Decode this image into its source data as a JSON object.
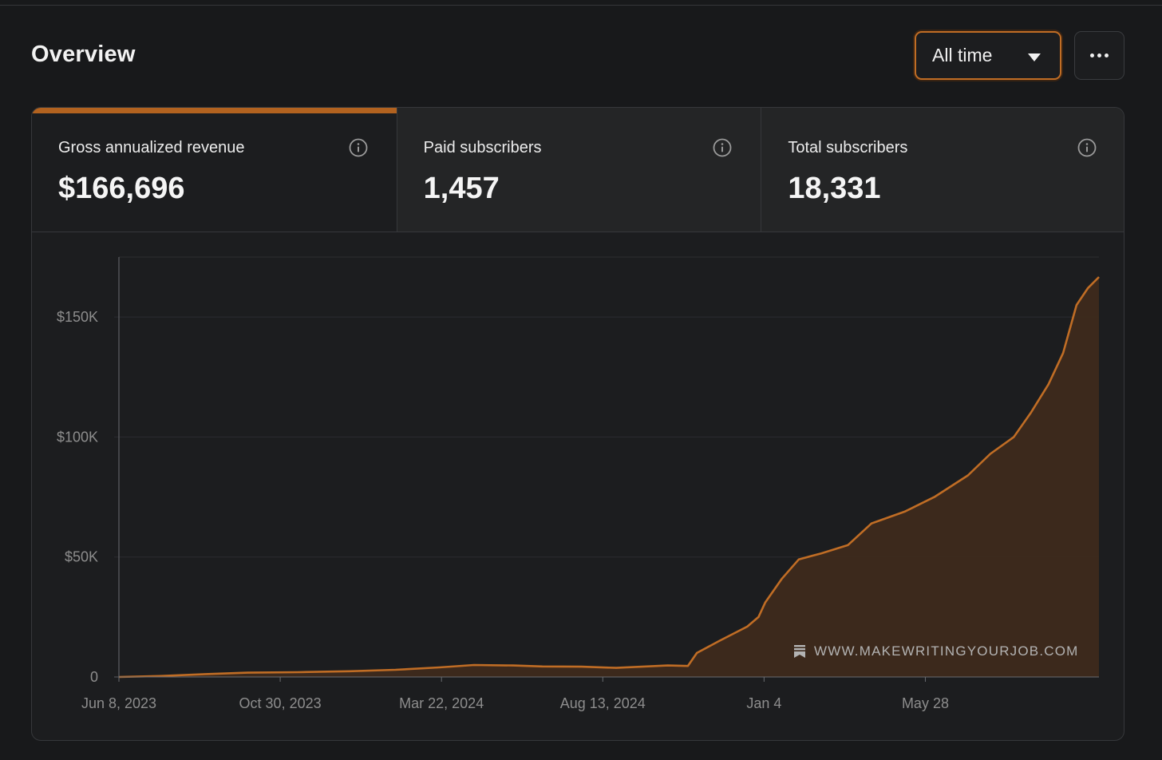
{
  "header": {
    "title": "Overview",
    "range_label": "All time",
    "range_icon": "chevron-down-icon",
    "more_icon": "more-horizontal-icon"
  },
  "metrics": [
    {
      "label": "Gross annualized revenue",
      "value": "$166,696",
      "active": true
    },
    {
      "label": "Paid subscribers",
      "value": "1,457",
      "active": false
    },
    {
      "label": "Total subscribers",
      "value": "18,331",
      "active": false
    }
  ],
  "colors": {
    "accent": "#b2621f",
    "line": "#c06d25",
    "area": "#3e2a1c",
    "background": "#18191b"
  },
  "watermark": {
    "text": "WWW.MAKEWRITINGYOURJOB.COM",
    "icon": "bookmark-icon"
  },
  "chart_data": {
    "type": "area",
    "title": "",
    "xlabel": "",
    "ylabel": "",
    "ylim": [
      0,
      175000
    ],
    "y_ticks": [
      0,
      50000,
      100000,
      150000
    ],
    "y_tick_labels": [
      "0",
      "$50K",
      "$100K",
      "$150K"
    ],
    "x_tick_dates": [
      "2023-06-08",
      "2023-10-30",
      "2024-03-22",
      "2024-08-13",
      "2025-01-04",
      "2025-05-28"
    ],
    "x_tick_labels": [
      "Jun 8, 2023",
      "Oct 30, 2023",
      "Mar 22, 2024",
      "Aug 13, 2024",
      "Jan 4",
      "May 28"
    ],
    "x_range": [
      "2023-06-08",
      "2025-10-30"
    ],
    "grid": true,
    "series": [
      {
        "points": [
          [
            "2023-06-08",
            0
          ],
          [
            "2023-07-15",
            400
          ],
          [
            "2023-08-20",
            1100
          ],
          [
            "2023-10-01",
            1800
          ],
          [
            "2023-11-15",
            2000
          ],
          [
            "2023-12-31",
            2400
          ],
          [
            "2024-02-10",
            3000
          ],
          [
            "2024-03-20",
            4000
          ],
          [
            "2024-04-20",
            5000
          ],
          [
            "2024-05-25",
            4800
          ],
          [
            "2024-06-20",
            4400
          ],
          [
            "2024-07-25",
            4300
          ],
          [
            "2024-08-25",
            3800
          ],
          [
            "2024-10-10",
            4800
          ],
          [
            "2024-10-28",
            4600
          ],
          [
            "2024-11-05",
            10000
          ],
          [
            "2024-11-25",
            15000
          ],
          [
            "2024-12-20",
            21000
          ],
          [
            "2024-12-30",
            25000
          ],
          [
            "2025-01-05",
            31000
          ],
          [
            "2025-01-20",
            41000
          ],
          [
            "2025-02-04",
            49000
          ],
          [
            "2025-02-24",
            51500
          ],
          [
            "2025-03-20",
            55000
          ],
          [
            "2025-04-10",
            64000
          ],
          [
            "2025-05-10",
            69000
          ],
          [
            "2025-06-05",
            75000
          ],
          [
            "2025-07-05",
            84000
          ],
          [
            "2025-07-25",
            93000
          ],
          [
            "2025-08-15",
            100000
          ],
          [
            "2025-08-30",
            110000
          ],
          [
            "2025-09-15",
            122000
          ],
          [
            "2025-09-28",
            135000
          ],
          [
            "2025-10-10",
            155000
          ],
          [
            "2025-10-20",
            162000
          ],
          [
            "2025-10-30",
            166696
          ]
        ]
      }
    ]
  }
}
